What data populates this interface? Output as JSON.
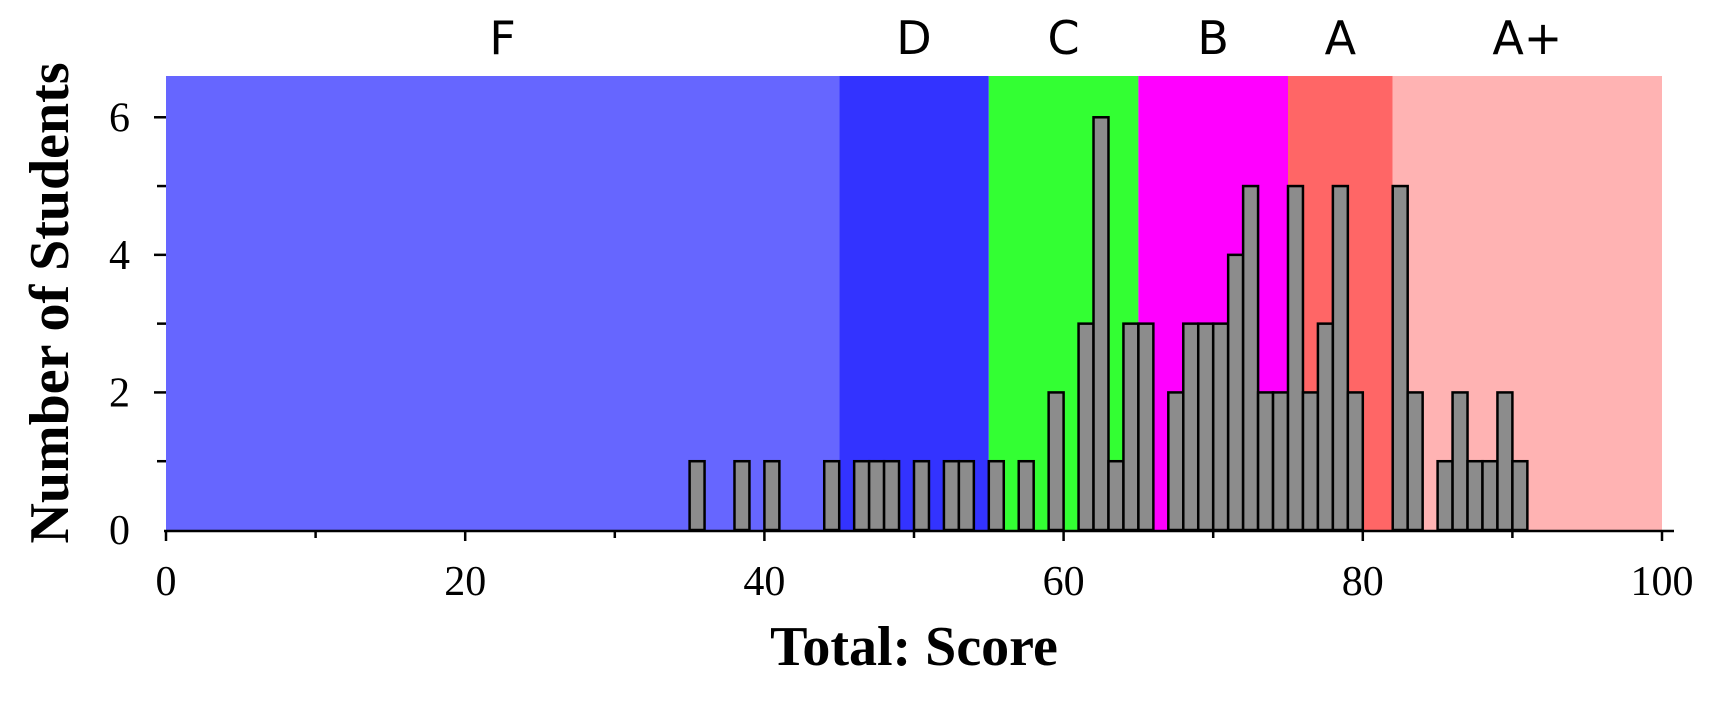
{
  "chart_data": {
    "type": "bar",
    "title": "",
    "xlabel": "Total: Score",
    "ylabel": "Number of Students",
    "xlim": [
      0,
      100
    ],
    "ylim": [
      0,
      6.6
    ],
    "x_ticks": [
      0,
      20,
      40,
      60,
      80,
      100
    ],
    "x_tick_labels": [
      "0",
      "20",
      "40",
      "60",
      "80",
      "100"
    ],
    "y_ticks": [
      0,
      2,
      4,
      6
    ],
    "y_tick_labels": [
      "0",
      "2",
      "4",
      "6"
    ],
    "bin_width": 1,
    "grid": false,
    "bar_color": "#8c8c8c",
    "grade_bands": [
      {
        "label": "F",
        "from": 0,
        "to": 45,
        "color": "#6666ff"
      },
      {
        "label": "D",
        "from": 45,
        "to": 55,
        "color": "#3333ff"
      },
      {
        "label": "C",
        "from": 55,
        "to": 65,
        "color": "#33ff33"
      },
      {
        "label": "B",
        "from": 65,
        "to": 75,
        "color": "#ff00ff"
      },
      {
        "label": "A",
        "from": 75,
        "to": 82,
        "color": "#ff6666"
      },
      {
        "label": "A+",
        "from": 82,
        "to": 100,
        "color": "#ffb3b3"
      }
    ],
    "bins": [
      {
        "x": 35,
        "count": 1
      },
      {
        "x": 38,
        "count": 1
      },
      {
        "x": 40,
        "count": 1
      },
      {
        "x": 44,
        "count": 1
      },
      {
        "x": 46,
        "count": 1
      },
      {
        "x": 47,
        "count": 1
      },
      {
        "x": 48,
        "count": 1
      },
      {
        "x": 50,
        "count": 1
      },
      {
        "x": 52,
        "count": 1
      },
      {
        "x": 53,
        "count": 1
      },
      {
        "x": 55,
        "count": 1
      },
      {
        "x": 57,
        "count": 1
      },
      {
        "x": 59,
        "count": 2
      },
      {
        "x": 61,
        "count": 3
      },
      {
        "x": 62,
        "count": 6
      },
      {
        "x": 63,
        "count": 1
      },
      {
        "x": 64,
        "count": 3
      },
      {
        "x": 65,
        "count": 3
      },
      {
        "x": 67,
        "count": 2
      },
      {
        "x": 68,
        "count": 3
      },
      {
        "x": 69,
        "count": 3
      },
      {
        "x": 70,
        "count": 3
      },
      {
        "x": 71,
        "count": 4
      },
      {
        "x": 72,
        "count": 5
      },
      {
        "x": 73,
        "count": 2
      },
      {
        "x": 74,
        "count": 2
      },
      {
        "x": 75,
        "count": 5
      },
      {
        "x": 76,
        "count": 2
      },
      {
        "x": 77,
        "count": 3
      },
      {
        "x": 78,
        "count": 5
      },
      {
        "x": 79,
        "count": 2
      },
      {
        "x": 82,
        "count": 5
      },
      {
        "x": 83,
        "count": 2
      },
      {
        "x": 85,
        "count": 1
      },
      {
        "x": 86,
        "count": 2
      },
      {
        "x": 87,
        "count": 1
      },
      {
        "x": 88,
        "count": 1
      },
      {
        "x": 89,
        "count": 2
      },
      {
        "x": 90,
        "count": 1
      }
    ]
  }
}
